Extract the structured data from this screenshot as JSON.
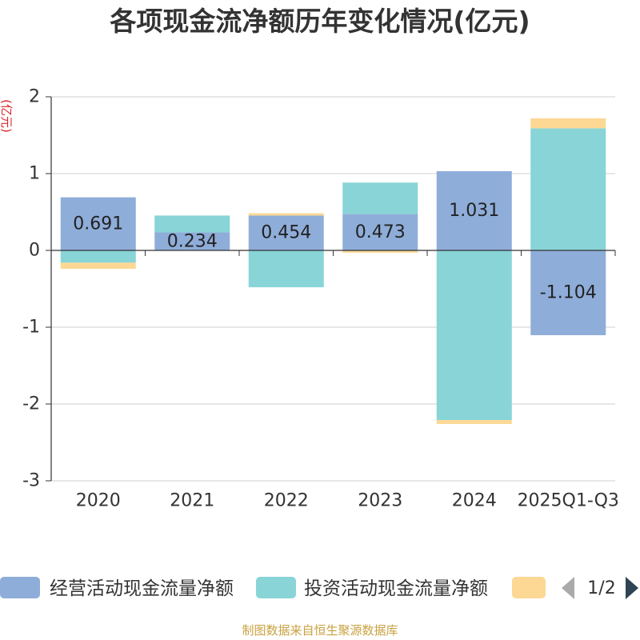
{
  "chart_data": {
    "type": "bar",
    "stacked": true,
    "title": "各项现金流净额历年变化情况(亿元)",
    "xlabel": "",
    "ylabel": "(亿元)",
    "ylabel_color": "#d9262c",
    "ylim": [
      -3,
      2
    ],
    "yticks": [
      2,
      1,
      0,
      -1,
      -2,
      -3
    ],
    "grid": true,
    "categories": [
      "2020",
      "2021",
      "2022",
      "2023",
      "2024",
      "2025Q1-Q3"
    ],
    "series": [
      {
        "name": "经营活动现金流量净额",
        "color": "#8fadd9",
        "values": [
          0.691,
          0.234,
          0.454,
          0.473,
          1.031,
          -1.104
        ],
        "data_labels": true
      },
      {
        "name": "投资活动现金流量净额",
        "color": "#88d4d7",
        "values": [
          -0.16,
          0.22,
          -0.48,
          0.41,
          -2.21,
          1.59
        ],
        "data_labels": false
      },
      {
        "color": "#fcd894",
        "values": [
          -0.08,
          0,
          0.03,
          -0.03,
          -0.05,
          0.13
        ],
        "data_labels": false
      }
    ],
    "legend": {
      "position": "bottom",
      "pager": "1/2"
    }
  },
  "source_note": "制图数据来自恒生聚源数据库",
  "source_note_color": "#c9a23f"
}
